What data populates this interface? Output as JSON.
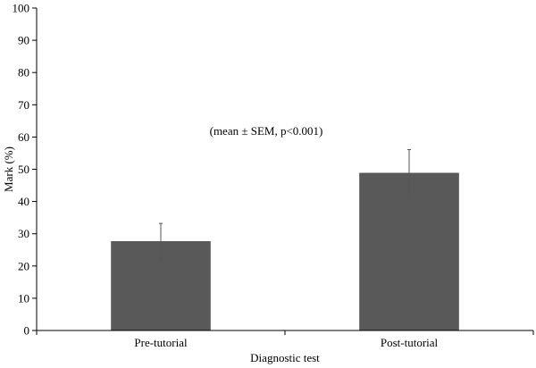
{
  "chart_data": {
    "type": "bar",
    "categories": [
      "Pre-tutorial",
      "Post-tutorial"
    ],
    "values": [
      27.6,
      48.8
    ],
    "errors": [
      5.6,
      7.3
    ],
    "xlabel": "Diagnostic test",
    "ylabel": "Mark (%)",
    "ylim": [
      0,
      100
    ],
    "yticks": [
      0,
      10,
      20,
      30,
      40,
      50,
      60,
      70,
      80,
      90,
      100
    ],
    "annotation": "(mean ± SEM, p<0.001)",
    "grid": false,
    "bar_color": "#595959"
  }
}
